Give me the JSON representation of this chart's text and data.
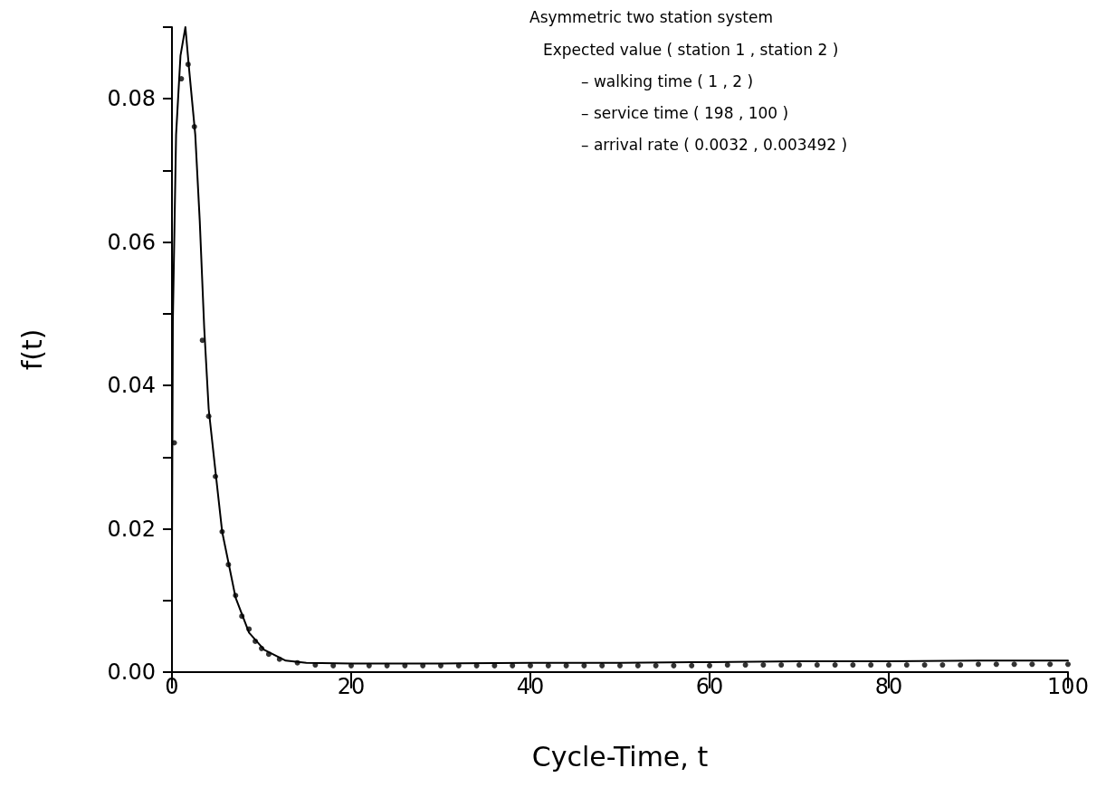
{
  "chart_data": {
    "type": "line",
    "title": "Asymmetric two station system",
    "annotations": [
      "Expected value ( station 1 , station 2 )",
      "– walking time ( 1 , 2 )",
      "– service time ( 198 , 100 )",
      "– arrival rate ( 0.0032 , 0.003492 )"
    ],
    "xlabel": "Cycle-Time, t",
    "ylabel": "f(t)",
    "xlim": [
      0,
      100
    ],
    "xticks": [
      0,
      20,
      40,
      60,
      80,
      100
    ],
    "ylim": [
      0,
      0.09
    ],
    "yticks": [
      {
        "value": 0,
        "label": "0.00"
      },
      {
        "value": 0.01,
        "label": null
      },
      {
        "value": 0.02,
        "label": "0.02"
      },
      {
        "value": 0.03,
        "label": null
      },
      {
        "value": 0.04,
        "label": "0.04"
      },
      {
        "value": 0.05,
        "label": null
      },
      {
        "value": 0.06,
        "label": "0.06"
      },
      {
        "value": 0.07,
        "label": null
      },
      {
        "value": 0.08,
        "label": "0.08"
      },
      {
        "value": 0.09,
        "label": null
      }
    ],
    "grid": false,
    "series": [
      {
        "color": "#000000",
        "marker": "none",
        "line_style": "solid",
        "x": [
          0,
          0.1,
          0.46,
          0.95,
          1.5,
          1.9,
          2.6,
          3.1,
          3.6,
          4.1,
          4.9,
          5.6,
          6.4,
          7.1,
          8.6,
          10.3,
          12.7,
          15,
          20,
          30,
          40,
          50,
          60,
          70,
          80,
          90,
          100
        ],
        "values": [
          0.016,
          0.049,
          0.075,
          0.086,
          0.09,
          0.0843,
          0.075,
          0.063,
          0.048,
          0.0367,
          0.0275,
          0.0196,
          0.0147,
          0.0104,
          0.0055,
          0.0031,
          0.0016,
          0.0013,
          0.0012,
          0.0012,
          0.0013,
          0.0013,
          0.0014,
          0.0015,
          0.0015,
          0.0016,
          0.0016
        ]
      },
      {
        "type": "scatter",
        "color": "#000000",
        "marker": "circle",
        "x": [
          0.26,
          1.05,
          1.8,
          2.5,
          3.4,
          4.1,
          4.85,
          5.6,
          6.3,
          7.1,
          7.8,
          8.6,
          9.3,
          10,
          10.8,
          12,
          14,
          16,
          18,
          20,
          22,
          24,
          26,
          28,
          30,
          32,
          34,
          36,
          38,
          40,
          42,
          44,
          46,
          48,
          50,
          52,
          54,
          56,
          58,
          60,
          62,
          64,
          66,
          68,
          70,
          72,
          74,
          76,
          78,
          80,
          82,
          84,
          86,
          88,
          90,
          92,
          94,
          96,
          98,
          100
        ],
        "values": [
          0.032,
          0.0828,
          0.0848,
          0.0761,
          0.0463,
          0.0357,
          0.0273,
          0.0196,
          0.015,
          0.0107,
          0.0078,
          0.006,
          0.0043,
          0.0033,
          0.0025,
          0.0018,
          0.0013,
          0.001,
          0.0009,
          0.0009,
          0.0009,
          0.0009,
          0.0009,
          0.0009,
          0.0009,
          0.0009,
          0.0009,
          0.0009,
          0.0009,
          0.0009,
          0.0009,
          0.0009,
          0.0009,
          0.0009,
          0.0009,
          0.0009,
          0.0009,
          0.0009,
          0.0009,
          0.0009,
          0.001,
          0.001,
          0.001,
          0.001,
          0.001,
          0.001,
          0.001,
          0.001,
          0.001,
          0.001,
          0.001,
          0.001,
          0.001,
          0.001,
          0.0011,
          0.0011,
          0.0011,
          0.0011,
          0.0011,
          0.0011
        ]
      }
    ]
  }
}
